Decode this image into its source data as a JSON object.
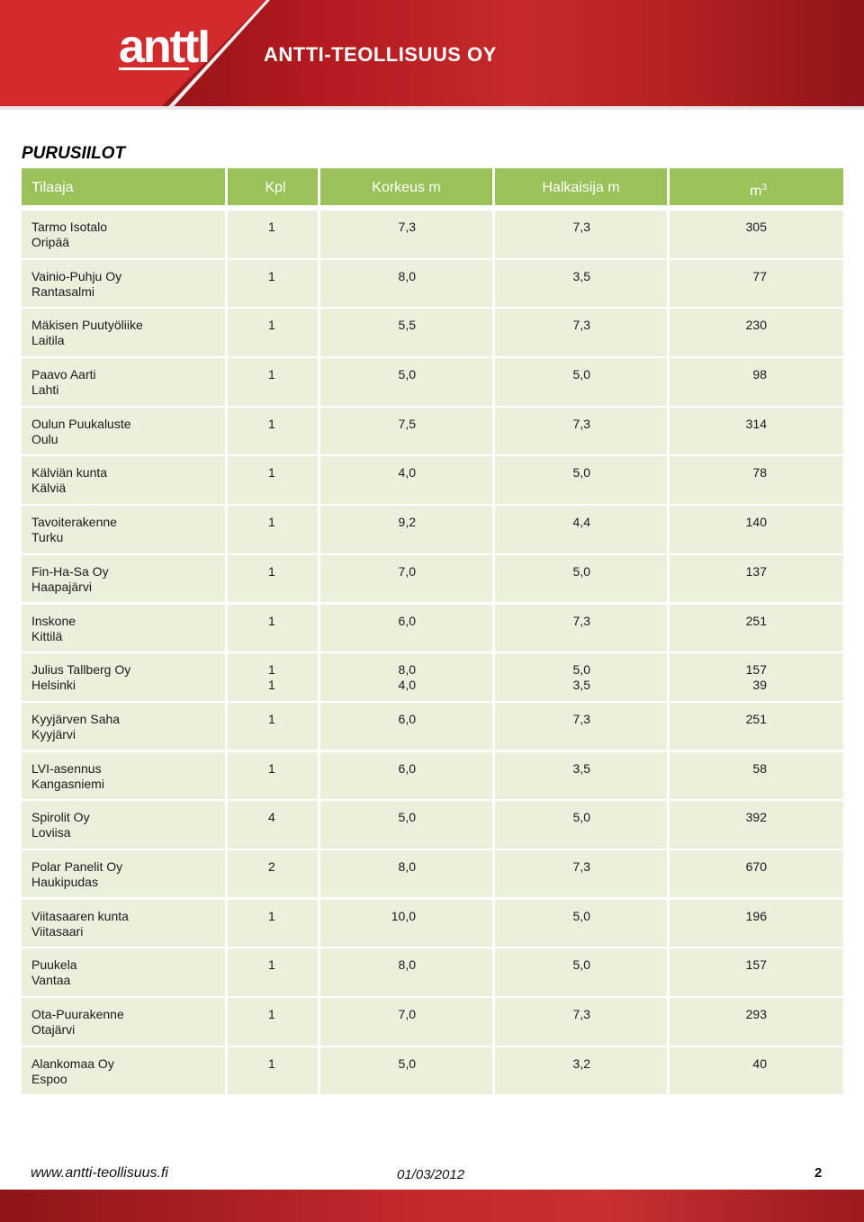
{
  "header": {
    "logo_text": "anttI",
    "company_name": "ANTTI-TEOLLISUUS OY"
  },
  "title": "PURUSIILOT",
  "table": {
    "headers": {
      "client": "Tilaaja",
      "count": "Kpl",
      "height": "Korkeus m",
      "diameter": "Halkaisija m",
      "volume": "m",
      "volume_sup": "3"
    },
    "rows": [
      {
        "name": "Tarmo Isotalo",
        "place": "Oripää",
        "kpl": [
          "1"
        ],
        "korkeus": [
          "7,3"
        ],
        "halkaisija": [
          "7,3"
        ],
        "m3": [
          "305"
        ]
      },
      {
        "name": "Vainio-Puhju Oy",
        "place": "Rantasalmi",
        "kpl": [
          "1"
        ],
        "korkeus": [
          "8,0"
        ],
        "halkaisija": [
          "3,5"
        ],
        "m3": [
          "77"
        ]
      },
      {
        "name": "Mäkisen Puutyöliike",
        "place": "Laitila",
        "kpl": [
          "1"
        ],
        "korkeus": [
          "5,5"
        ],
        "halkaisija": [
          "7,3"
        ],
        "m3": [
          "230"
        ]
      },
      {
        "name": "Paavo Aarti",
        "place": "Lahti",
        "kpl": [
          "1"
        ],
        "korkeus": [
          "5,0"
        ],
        "halkaisija": [
          "5,0"
        ],
        "m3": [
          "98"
        ]
      },
      {
        "name": "Oulun Puukaluste",
        "place": "Oulu",
        "kpl": [
          "1"
        ],
        "korkeus": [
          "7,5"
        ],
        "halkaisija": [
          "7,3"
        ],
        "m3": [
          "314"
        ]
      },
      {
        "name": "Kälviän kunta",
        "place": "Kälviä",
        "kpl": [
          "1"
        ],
        "korkeus": [
          "4,0"
        ],
        "halkaisija": [
          "5,0"
        ],
        "m3": [
          "78"
        ]
      },
      {
        "name": "Tavoiterakenne",
        "place": "Turku",
        "kpl": [
          "1"
        ],
        "korkeus": [
          "9,2"
        ],
        "halkaisija": [
          "4,4"
        ],
        "m3": [
          "140"
        ]
      },
      {
        "name": "Fin-Ha-Sa Oy",
        "place": "Haapajärvi",
        "kpl": [
          "1"
        ],
        "korkeus": [
          "7,0"
        ],
        "halkaisija": [
          "5,0"
        ],
        "m3": [
          "137"
        ]
      },
      {
        "name": "Inskone",
        "place": "Kittilä",
        "kpl": [
          "1"
        ],
        "korkeus": [
          "6,0"
        ],
        "halkaisija": [
          "7,3"
        ],
        "m3": [
          "251"
        ]
      },
      {
        "name": "Julius Tallberg Oy",
        "place": "Helsinki",
        "kpl": [
          "1",
          "1"
        ],
        "korkeus": [
          "8,0",
          "4,0"
        ],
        "halkaisija": [
          "5,0",
          "3,5"
        ],
        "m3": [
          "157",
          "39"
        ]
      },
      {
        "name": "Kyyjärven Saha",
        "place": "Kyyjärvi",
        "kpl": [
          "1"
        ],
        "korkeus": [
          "6,0"
        ],
        "halkaisija": [
          "7,3"
        ],
        "m3": [
          "251"
        ]
      },
      {
        "name": "LVI-asennus",
        "place": "Kangasniemi",
        "kpl": [
          "1"
        ],
        "korkeus": [
          "6,0"
        ],
        "halkaisija": [
          "3,5"
        ],
        "m3": [
          "58"
        ]
      },
      {
        "name": "Spirolit Oy",
        "place": "Loviisa",
        "kpl": [
          "4"
        ],
        "korkeus": [
          "5,0"
        ],
        "halkaisija": [
          "5,0"
        ],
        "m3": [
          "392"
        ]
      },
      {
        "name": "Polar Panelit Oy",
        "place": "Haukipudas",
        "kpl": [
          "2"
        ],
        "korkeus": [
          "8,0"
        ],
        "halkaisija": [
          "7,3"
        ],
        "m3": [
          "670"
        ]
      },
      {
        "name": "Viitasaaren kunta",
        "place": "Viitasaari",
        "kpl": [
          "1"
        ],
        "korkeus": [
          "10,0"
        ],
        "halkaisija": [
          "5,0"
        ],
        "m3": [
          "196"
        ]
      },
      {
        "name": "Puukela",
        "place": "Vantaa",
        "kpl": [
          "1"
        ],
        "korkeus": [
          "8,0"
        ],
        "halkaisija": [
          "5,0"
        ],
        "m3": [
          "157"
        ]
      },
      {
        "name": "Ota-Puurakenne",
        "place": "Otajärvi",
        "kpl": [
          "1"
        ],
        "korkeus": [
          "7,0"
        ],
        "halkaisija": [
          "7,3"
        ],
        "m3": [
          "293"
        ]
      },
      {
        "name": "Alankomaa Oy",
        "place": "Espoo",
        "kpl": [
          "1"
        ],
        "korkeus": [
          "5,0"
        ],
        "halkaisija": [
          "3,2"
        ],
        "m3": [
          "40"
        ]
      }
    ]
  },
  "footer": {
    "url": "www.antti-teollisuus.fi",
    "date": "01/03/2012",
    "page": "2"
  }
}
